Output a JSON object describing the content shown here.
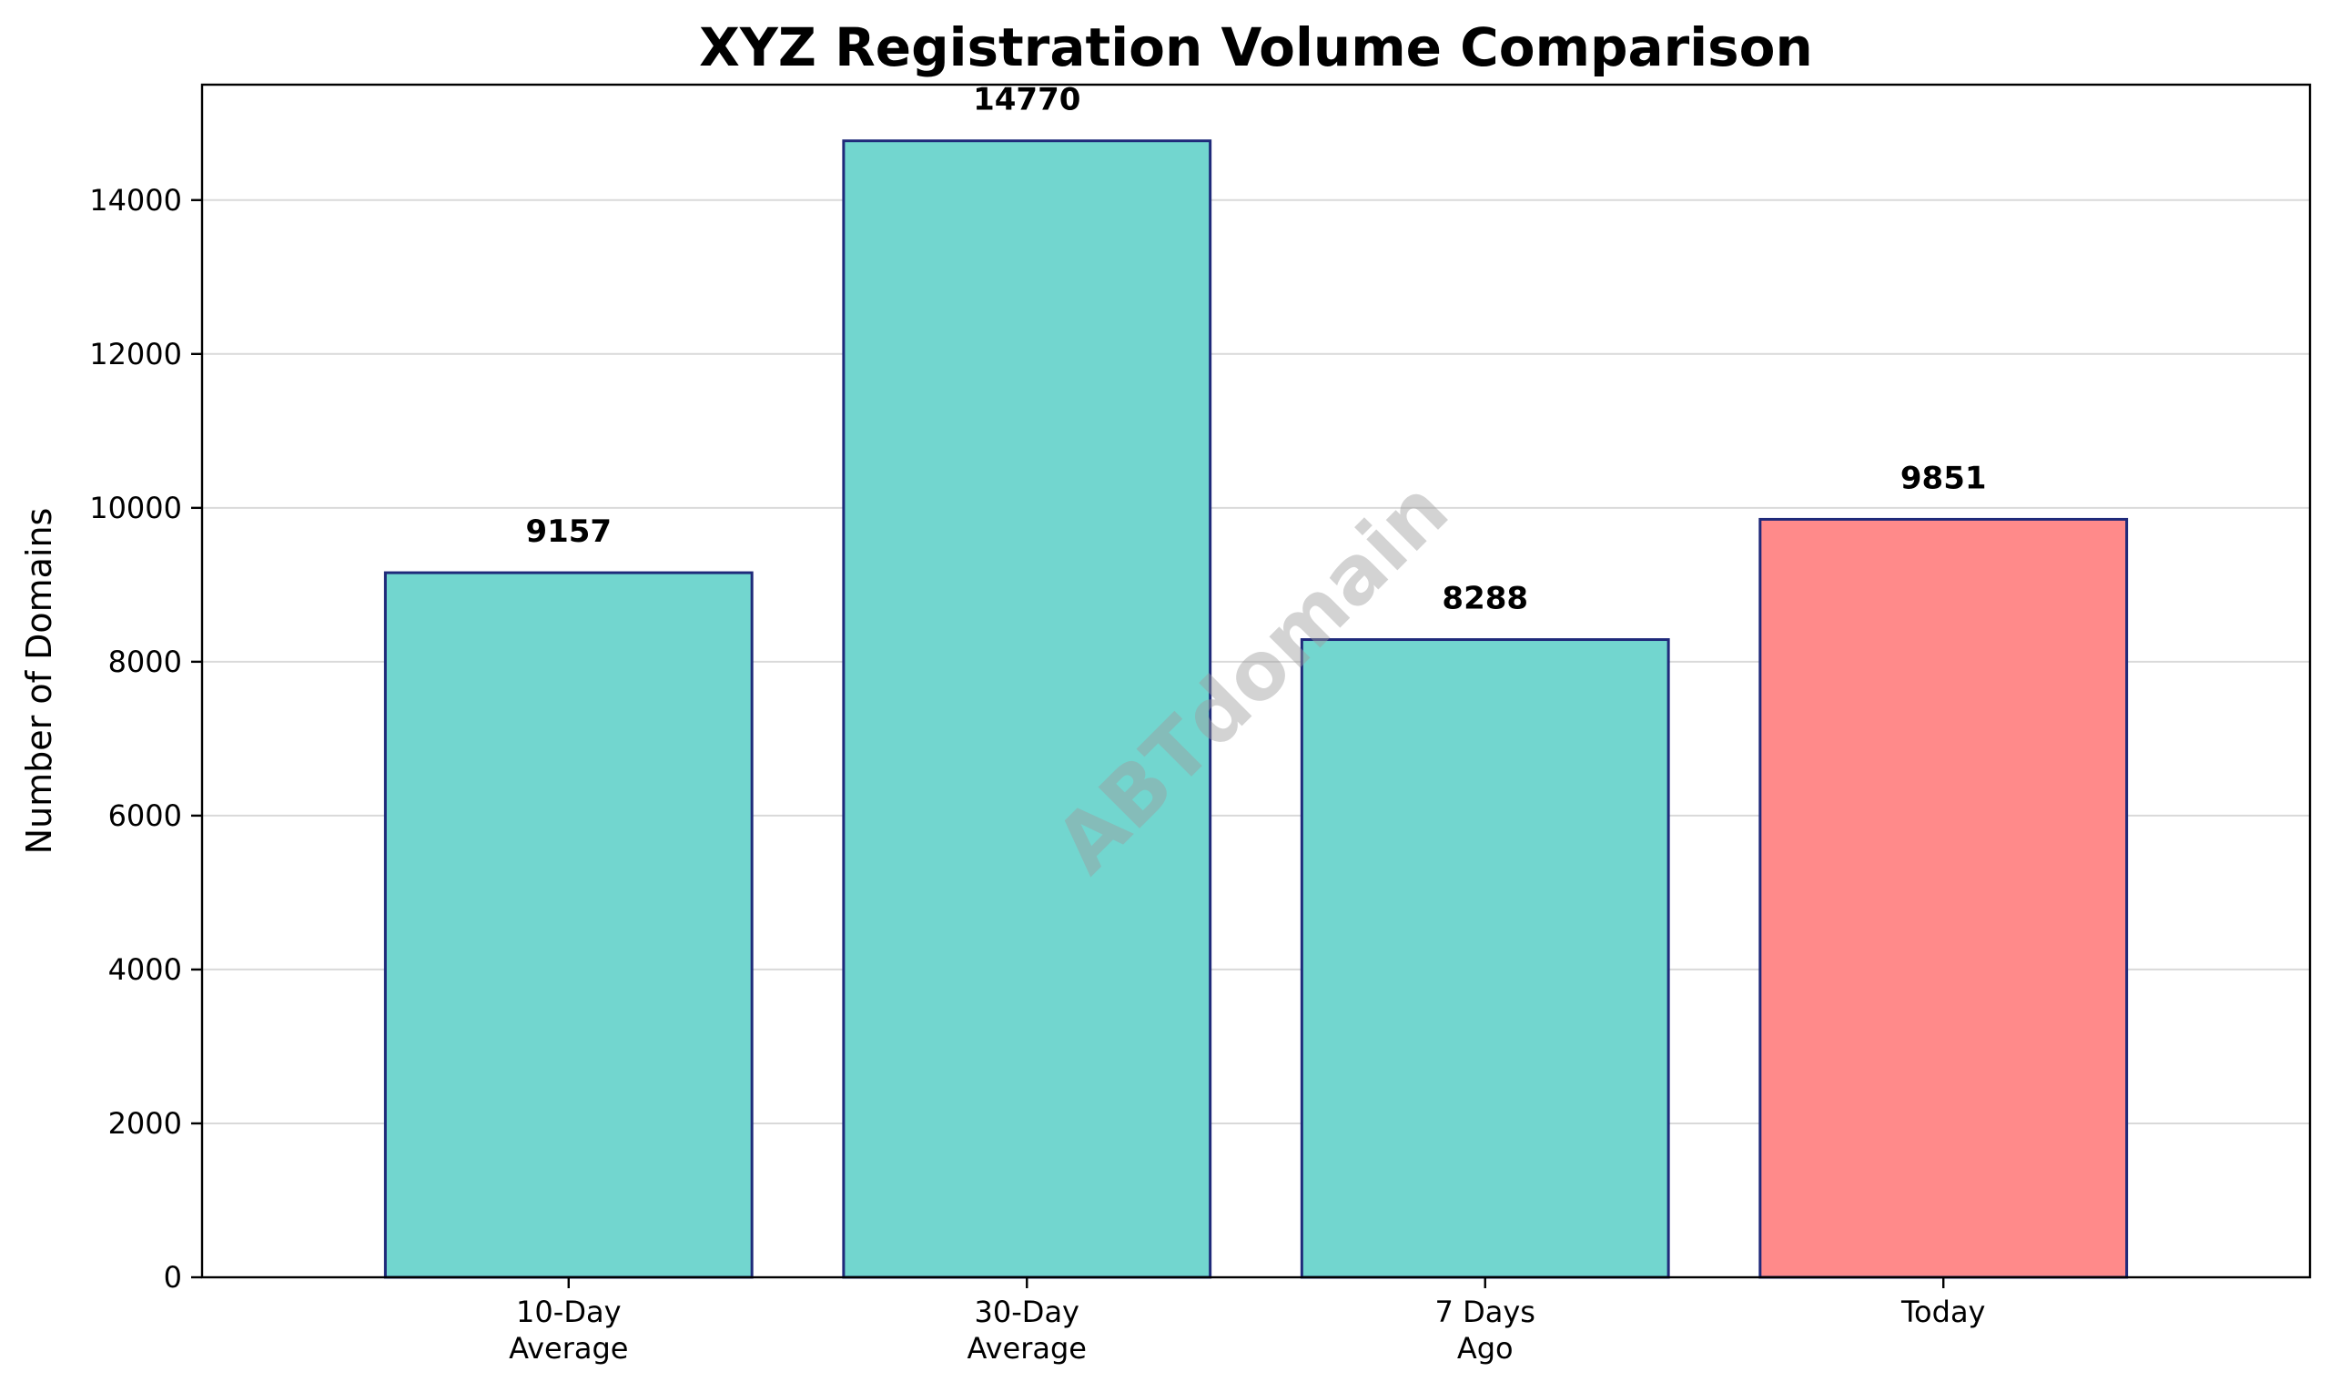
{
  "chart_data": {
    "type": "bar",
    "title": "XYZ Registration Volume Comparison",
    "xlabel": "",
    "ylabel": "Number of Domains",
    "categories": [
      [
        "10-Day",
        "Average"
      ],
      [
        "30-Day",
        "Average"
      ],
      [
        "7 Days",
        "Ago"
      ],
      [
        "Today"
      ]
    ],
    "values": [
      9157,
      14770,
      8288,
      9851
    ],
    "value_labels": [
      "9157",
      "14770",
      "8288",
      "9851"
    ],
    "bar_colors": [
      "#72d6cf",
      "#72d6cf",
      "#72d6cf",
      "#ff8a8a"
    ],
    "bar_edge_color": "#1f2a7a",
    "ylim": [
      0,
      15500
    ],
    "yticks": [
      0,
      2000,
      4000,
      6000,
      8000,
      10000,
      12000,
      14000
    ],
    "ytick_labels": [
      "0",
      "2000",
      "4000",
      "6000",
      "8000",
      "10000",
      "12000",
      "14000"
    ],
    "grid": "horizontal",
    "watermark": "ABTdomain"
  }
}
